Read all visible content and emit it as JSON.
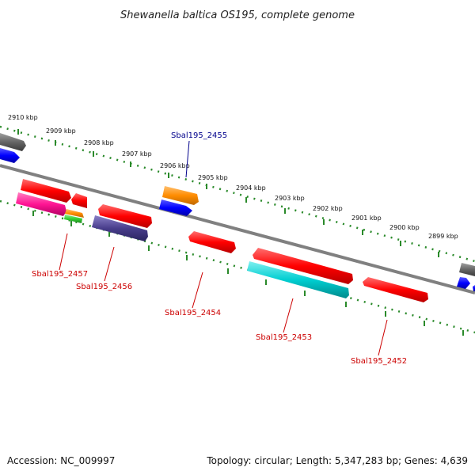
{
  "title": "Shewanella baltica OS195, complete genome",
  "footer": {
    "accession": "Accession: NC_009997",
    "summary": "Topology: circular; Length: 5,347,283 bp; Genes: 4,639"
  },
  "ruler": {
    "labels": [
      "2910 kbp",
      "2909 kbp",
      "2908 kbp",
      "2907 kbp",
      "2906 kbp",
      "2905 kbp",
      "2904 kbp",
      "2903 kbp",
      "2902 kbp",
      "2901 kbp",
      "2900 kbp",
      "2899 kbp"
    ]
  },
  "gene_labels": {
    "top": [
      "Sbal195_2455"
    ],
    "bottom": [
      "Sbal195_2457",
      "Sbal195_2456",
      "Sbal195_2454",
      "Sbal195_2453",
      "Sbal195_2452"
    ]
  },
  "colors": {
    "backbone": "#808080",
    "ruler_ticks": "#2a8a2a",
    "label_top": "#00008b",
    "label_bottom": "#cc0000",
    "gene_red": "#ff0000",
    "gene_blue": "#0000ff",
    "gene_orange": "#ff8c00",
    "gene_magenta": "#ff1493",
    "gene_green": "#32cd32",
    "gene_slate": "#483d8b",
    "gene_cyan": "#00ced1",
    "gene_gray": "#666666"
  }
}
